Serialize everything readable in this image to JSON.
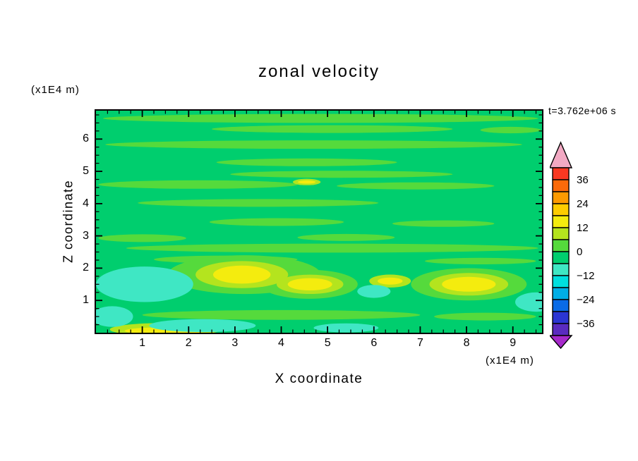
{
  "title": "zonal velocity",
  "time_label": "t=3.762e+06 s",
  "axes": {
    "x_label": "X coordinate",
    "x_unit_label": "(x1E4 m)",
    "y_label": "Z coordinate",
    "y_unit_label": "(x1E4 m)",
    "x_ticks": [
      1,
      2,
      3,
      4,
      5,
      6,
      7,
      8,
      9
    ],
    "y_ticks": [
      1,
      2,
      3,
      4,
      5,
      6
    ],
    "minor_step": 0.25,
    "x_range": [
      0,
      9.63
    ],
    "z_range": [
      0,
      6.88
    ]
  },
  "colorbar": {
    "labels": [
      "36",
      "24",
      "12",
      "0",
      "−12",
      "−24",
      "−36"
    ],
    "level_step": 6,
    "top_arrow_color": "#F2A9C3",
    "bottom_arrow_color": "#A62ACB",
    "cells": [
      {
        "min": 36,
        "max": 42,
        "color": "#F93822"
      },
      {
        "min": 30,
        "max": 36,
        "color": "#FB6A0A"
      },
      {
        "min": 24,
        "max": 30,
        "color": "#FD9A00"
      },
      {
        "min": 18,
        "max": 24,
        "color": "#FECC00"
      },
      {
        "min": 12,
        "max": 18,
        "color": "#F4EC0E"
      },
      {
        "min": 6,
        "max": 12,
        "color": "#B4E41E"
      },
      {
        "min": 0,
        "max": 6,
        "color": "#55DA3C"
      },
      {
        "min": -6,
        "max": 0,
        "color": "#00CE6E"
      },
      {
        "min": -12,
        "max": -6,
        "color": "#3FE7C4"
      },
      {
        "min": -18,
        "max": -12,
        "color": "#00DFDF"
      },
      {
        "min": -24,
        "max": -18,
        "color": "#00AEE6"
      },
      {
        "min": -30,
        "max": -24,
        "color": "#0A6BE6"
      },
      {
        "min": -36,
        "max": -30,
        "color": "#2B35D3"
      },
      {
        "min": -42,
        "max": -36,
        "color": "#5A2BC0"
      }
    ]
  },
  "chart_data": {
    "type": "heatmap",
    "title": "zonal velocity",
    "xlabel": "X coordinate (x1E4 m)",
    "ylabel": "Z coordinate (x1E4 m)",
    "time_annotation": "t=3.762e+06 s",
    "x_range": [
      0,
      9.63
    ],
    "z_range": [
      0,
      6.88
    ],
    "x_ticks": [
      1,
      2,
      3,
      4,
      5,
      6,
      7,
      8,
      9
    ],
    "z_ticks": [
      1,
      2,
      3,
      4,
      5,
      6
    ],
    "contour_levels": [
      -36,
      -24,
      -12,
      0,
      12,
      24,
      36
    ],
    "background": {
      "value_range": [
        -6,
        0
      ],
      "color": "#00CE6E"
    },
    "palette": {
      "streak": "#55DA3C",
      "halo": "#B4E41E",
      "yellow": "#F4EC0E",
      "cyan": "#3FE7C4"
    },
    "kind_value_ranges": {
      "streak": [
        0,
        6
      ],
      "halo": [
        6,
        12
      ],
      "yellow": [
        12,
        18
      ],
      "cyan": [
        -12,
        -6
      ]
    },
    "features": [
      {
        "kind": "streak",
        "cx": 4.85,
        "cy": 6.64,
        "rx": 4.7,
        "ry": 0.14
      },
      {
        "kind": "streak",
        "cx": 5.1,
        "cy": 6.31,
        "rx": 2.6,
        "ry": 0.12
      },
      {
        "kind": "streak",
        "cx": 8.95,
        "cy": 6.28,
        "rx": 0.65,
        "ry": 0.1
      },
      {
        "kind": "streak",
        "cx": 4.7,
        "cy": 5.83,
        "rx": 4.5,
        "ry": 0.13
      },
      {
        "kind": "streak",
        "cx": 4.55,
        "cy": 5.28,
        "rx": 1.95,
        "ry": 0.12
      },
      {
        "kind": "streak",
        "cx": 5.3,
        "cy": 4.91,
        "rx": 2.4,
        "ry": 0.11
      },
      {
        "kind": "streak",
        "cx": 2.2,
        "cy": 4.59,
        "rx": 2.15,
        "ry": 0.13
      },
      {
        "kind": "streak",
        "cx": 6.9,
        "cy": 4.55,
        "rx": 1.7,
        "ry": 0.11
      },
      {
        "kind": "streak",
        "cx": 3.5,
        "cy": 4.02,
        "rx": 2.6,
        "ry": 0.12
      },
      {
        "kind": "streak",
        "cx": 3.9,
        "cy": 3.43,
        "rx": 1.45,
        "ry": 0.12
      },
      {
        "kind": "streak",
        "cx": 7.5,
        "cy": 3.38,
        "rx": 1.1,
        "ry": 0.1
      },
      {
        "kind": "streak",
        "cx": 1.0,
        "cy": 2.93,
        "rx": 0.95,
        "ry": 0.12
      },
      {
        "kind": "streak",
        "cx": 5.4,
        "cy": 2.95,
        "rx": 1.05,
        "ry": 0.11
      },
      {
        "kind": "streak",
        "cx": 5.1,
        "cy": 2.62,
        "rx": 4.45,
        "ry": 0.14
      },
      {
        "kind": "streak",
        "cx": 2.8,
        "cy": 2.27,
        "rx": 1.55,
        "ry": 0.12
      },
      {
        "kind": "streak",
        "cx": 8.3,
        "cy": 2.22,
        "rx": 1.2,
        "ry": 0.1
      },
      {
        "kind": "streak",
        "cx": 3.2,
        "cy": 1.8,
        "rx": 1.65,
        "ry": 0.6
      },
      {
        "kind": "streak",
        "cx": 4.6,
        "cy": 1.5,
        "rx": 1.05,
        "ry": 0.45
      },
      {
        "kind": "streak",
        "cx": 8.05,
        "cy": 1.5,
        "rx": 1.25,
        "ry": 0.5
      },
      {
        "kind": "streak",
        "cx": 4.0,
        "cy": 0.55,
        "rx": 3.0,
        "ry": 0.15
      },
      {
        "kind": "streak",
        "cx": 8.4,
        "cy": 0.5,
        "rx": 1.1,
        "ry": 0.12
      },
      {
        "kind": "halo",
        "cx": 3.15,
        "cy": 1.8,
        "rx": 1.0,
        "ry": 0.42
      },
      {
        "kind": "halo",
        "cx": 4.62,
        "cy": 1.5,
        "rx": 0.72,
        "ry": 0.3
      },
      {
        "kind": "halo",
        "cx": 6.35,
        "cy": 1.6,
        "rx": 0.45,
        "ry": 0.2
      },
      {
        "kind": "halo",
        "cx": 8.05,
        "cy": 1.5,
        "rx": 0.85,
        "ry": 0.35
      },
      {
        "kind": "halo",
        "cx": 1.5,
        "cy": 0.1,
        "rx": 1.2,
        "ry": 0.2
      },
      {
        "kind": "halo",
        "cx": 4.55,
        "cy": 4.67,
        "rx": 0.3,
        "ry": 0.1
      },
      {
        "kind": "yellow",
        "cx": 3.15,
        "cy": 1.8,
        "rx": 0.62,
        "ry": 0.28
      },
      {
        "kind": "yellow",
        "cx": 4.62,
        "cy": 1.5,
        "rx": 0.48,
        "ry": 0.19
      },
      {
        "kind": "yellow",
        "cx": 6.35,
        "cy": 1.6,
        "rx": 0.27,
        "ry": 0.11
      },
      {
        "kind": "yellow",
        "cx": 8.05,
        "cy": 1.5,
        "rx": 0.58,
        "ry": 0.23
      },
      {
        "kind": "yellow",
        "cx": 1.5,
        "cy": 0.06,
        "rx": 0.88,
        "ry": 0.11
      },
      {
        "kind": "yellow",
        "cx": 4.55,
        "cy": 4.67,
        "rx": 0.19,
        "ry": 0.05
      },
      {
        "kind": "cyan",
        "cx": 1.05,
        "cy": 1.5,
        "rx": 1.05,
        "ry": 0.55
      },
      {
        "kind": "cyan",
        "cx": 0.35,
        "cy": 0.5,
        "rx": 0.45,
        "ry": 0.32
      },
      {
        "kind": "cyan",
        "cx": 6.0,
        "cy": 1.28,
        "rx": 0.36,
        "ry": 0.2
      },
      {
        "kind": "cyan",
        "cx": 9.5,
        "cy": 0.95,
        "rx": 0.45,
        "ry": 0.3
      },
      {
        "kind": "cyan",
        "cx": 2.3,
        "cy": 0.22,
        "rx": 1.15,
        "ry": 0.2
      },
      {
        "kind": "cyan",
        "cx": 5.4,
        "cy": 0.15,
        "rx": 0.7,
        "ry": 0.14
      }
    ]
  }
}
